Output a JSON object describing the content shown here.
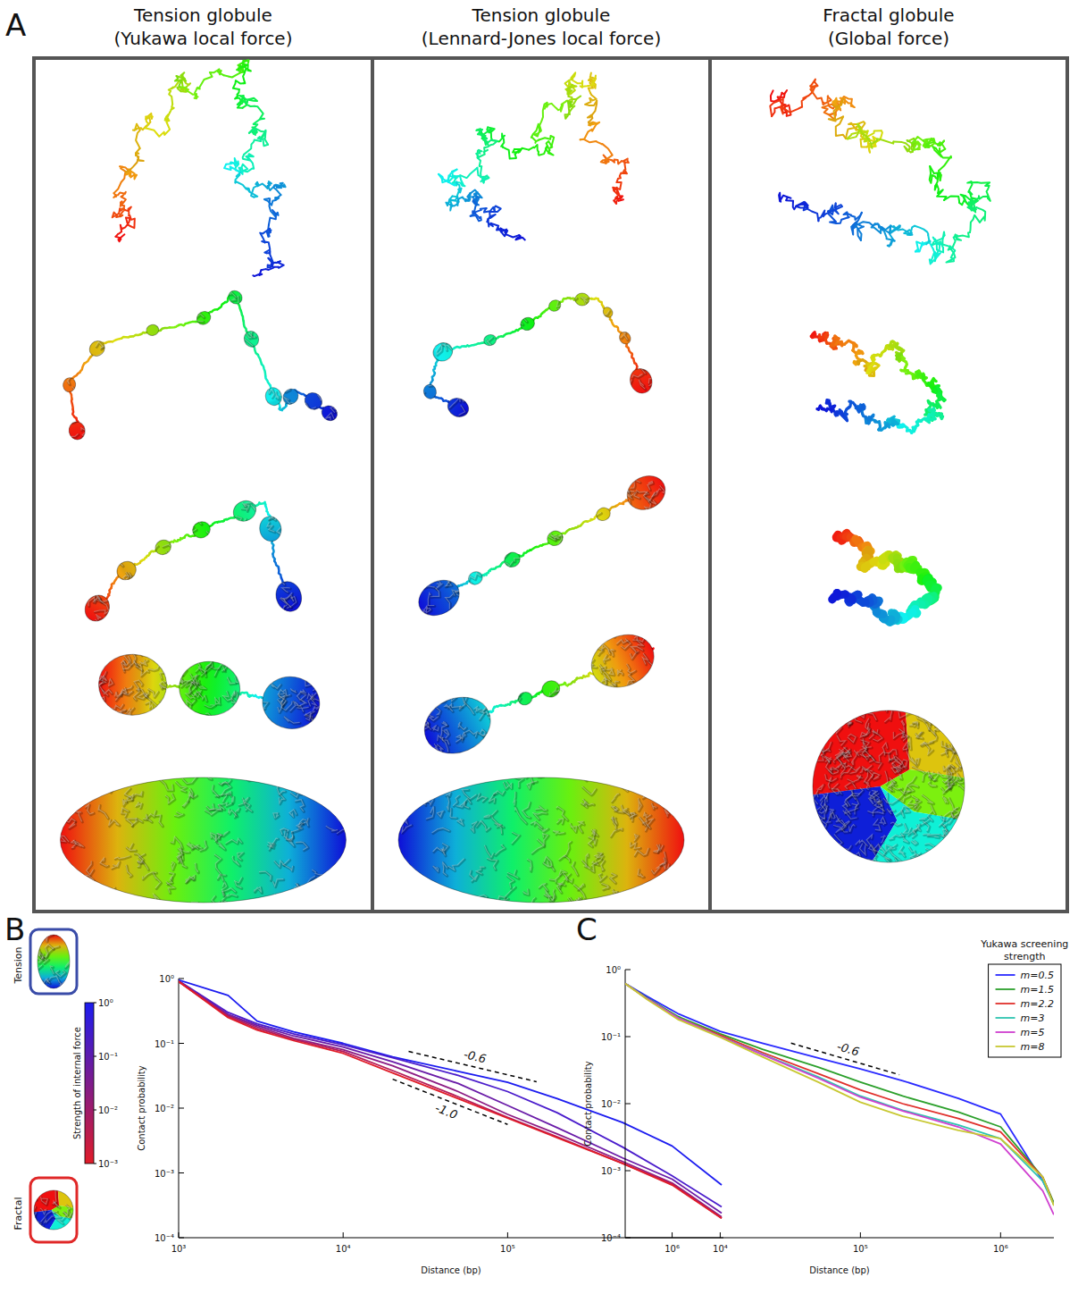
{
  "panel_a": {
    "letter": "A",
    "columns": [
      {
        "title": "Tension globule",
        "subtitle": "(Yukawa local force)"
      },
      {
        "title": "Tension globule",
        "subtitle": "(Lennard-Jones local force)"
      },
      {
        "title": "Fractal globule",
        "subtitle": "(Global force)"
      }
    ]
  },
  "chart_data": [
    {
      "type": "line",
      "letter": "B",
      "log": true,
      "xlabel": "Distance (bp)",
      "ylabel": "Contact probability",
      "x": [
        1000,
        2000,
        3000,
        5000,
        10000,
        20000,
        50000,
        100000,
        200000,
        500000,
        1000000,
        2000000
      ],
      "xlim": [
        1000,
        2050000
      ],
      "ylim": [
        0.0001,
        1
      ],
      "xticks": [
        {
          "value": 1000,
          "label": "10³"
        },
        {
          "value": 10000,
          "label": "10⁴"
        },
        {
          "value": 100000,
          "label": "10⁵"
        },
        {
          "value": 1000000,
          "label": "10⁶"
        }
      ],
      "yticks": [
        {
          "value": 0.0001,
          "label": "10⁻⁴"
        },
        {
          "value": 0.001,
          "label": "10⁻³"
        },
        {
          "value": 0.01,
          "label": "10⁻²"
        },
        {
          "value": 0.1,
          "label": "10⁻¹"
        },
        {
          "value": 1,
          "label": "10⁰"
        }
      ],
      "series": [
        {
          "color": "#1c1cf0",
          "values": [
            0.95,
            0.55,
            0.22,
            0.15,
            0.1,
            0.062,
            0.037,
            0.025,
            0.014,
            0.006,
            0.0026,
            0.00065
          ]
        },
        {
          "color": "#4a1ccc",
          "values": [
            0.92,
            0.3,
            0.2,
            0.14,
            0.095,
            0.06,
            0.032,
            0.018,
            0.0085,
            0.0025,
            0.0009,
            0.0003
          ]
        },
        {
          "color": "#6a1ca8",
          "values": [
            0.92,
            0.28,
            0.19,
            0.13,
            0.088,
            0.052,
            0.024,
            0.011,
            0.005,
            0.0017,
            0.0008,
            0.00024
          ]
        },
        {
          "color": "#8c1c84",
          "values": [
            0.9,
            0.27,
            0.18,
            0.12,
            0.08,
            0.045,
            0.018,
            0.008,
            0.004,
            0.0015,
            0.0007,
            0.00021
          ]
        },
        {
          "color": "#b41c5a",
          "values": [
            0.9,
            0.26,
            0.17,
            0.115,
            0.075,
            0.038,
            0.015,
            0.0072,
            0.0036,
            0.0014,
            0.00068,
            0.0002
          ]
        },
        {
          "color": "#e01c28",
          "values": [
            0.9,
            0.25,
            0.16,
            0.11,
            0.07,
            0.035,
            0.014,
            0.007,
            0.0035,
            0.0014,
            0.00065,
            0.0002
          ]
        }
      ],
      "annotations": [
        {
          "text": "-0.6",
          "x": [
            25000,
            150000
          ],
          "y": [
            0.075,
            0.0256
          ]
        },
        {
          "text": "-1.0",
          "x": [
            20000,
            100000
          ],
          "y": [
            0.028,
            0.0056
          ]
        }
      ],
      "colorbar": {
        "title": "Strength of internal force",
        "range": [
          0.001,
          1
        ],
        "ticks": [
          {
            "value": 1,
            "label": "10⁰"
          },
          {
            "value": 0.1,
            "label": "10⁻¹"
          },
          {
            "value": 0.01,
            "label": "10⁻²"
          },
          {
            "value": 0.001,
            "label": "10⁻³"
          }
        ]
      },
      "insets": [
        {
          "label": "Tension",
          "color": "#3a4ca8"
        },
        {
          "label": "Fractal",
          "color": "#e02828"
        }
      ]
    },
    {
      "type": "line",
      "letter": "C",
      "log": true,
      "legend": "upper right",
      "legend_title": "Yukawa screening strength",
      "xlabel": "Distance (bp)",
      "ylabel": "Contact probability",
      "x": [
        2100,
        3000,
        5000,
        10000,
        20000,
        50000,
        100000,
        200000,
        500000,
        1000000,
        2000000,
        2400000
      ],
      "xlim": [
        2100,
        2400000
      ],
      "ylim": [
        0.0001,
        1
      ],
      "xticks": [
        {
          "value": 10000,
          "label": "10⁴"
        },
        {
          "value": 100000,
          "label": "10⁵"
        },
        {
          "value": 1000000,
          "label": "10⁶"
        }
      ],
      "yticks": [
        {
          "value": 0.0001,
          "label": "10⁻⁴"
        },
        {
          "value": 0.001,
          "label": "10⁻³"
        },
        {
          "value": 0.01,
          "label": "10⁻²"
        },
        {
          "value": 0.1,
          "label": "10⁻¹"
        },
        {
          "value": 1,
          "label": "10⁰"
        }
      ],
      "series": [
        {
          "name": "m=0.5",
          "color": "#2a2aff",
          "values": [
            0.62,
            0.4,
            0.22,
            0.12,
            0.08,
            0.048,
            0.033,
            0.022,
            0.012,
            0.007,
            0.0007,
            0.00032
          ]
        },
        {
          "name": "m=1.5",
          "color": "#2ca02c",
          "values": [
            0.62,
            0.38,
            0.2,
            0.11,
            0.065,
            0.035,
            0.021,
            0.013,
            0.0075,
            0.0045,
            0.0008,
            0.00033
          ]
        },
        {
          "name": "m=2.2",
          "color": "#e0302c",
          "values": [
            0.62,
            0.37,
            0.19,
            0.105,
            0.058,
            0.028,
            0.016,
            0.01,
            0.006,
            0.0038,
            0.0008,
            0.00031
          ]
        },
        {
          "name": "m=3",
          "color": "#2ec4b0",
          "values": [
            0.62,
            0.37,
            0.19,
            0.1,
            0.055,
            0.025,
            0.013,
            0.008,
            0.0048,
            0.003,
            0.0007,
            0.00031
          ]
        },
        {
          "name": "m=5",
          "color": "#d040d0",
          "values": [
            0.62,
            0.37,
            0.19,
            0.1,
            0.054,
            0.024,
            0.0125,
            0.0078,
            0.0045,
            0.0025,
            0.0005,
            0.00022
          ]
        },
        {
          "name": "m=8",
          "color": "#c8c832",
          "values": [
            0.62,
            0.36,
            0.18,
            0.098,
            0.05,
            0.021,
            0.0105,
            0.0065,
            0.004,
            0.003,
            0.0008,
            0.0003
          ]
        }
      ],
      "annotations": [
        {
          "text": "-0.6",
          "x": [
            32000,
            190000
          ],
          "y": [
            0.08,
            0.027
          ]
        }
      ]
    }
  ]
}
